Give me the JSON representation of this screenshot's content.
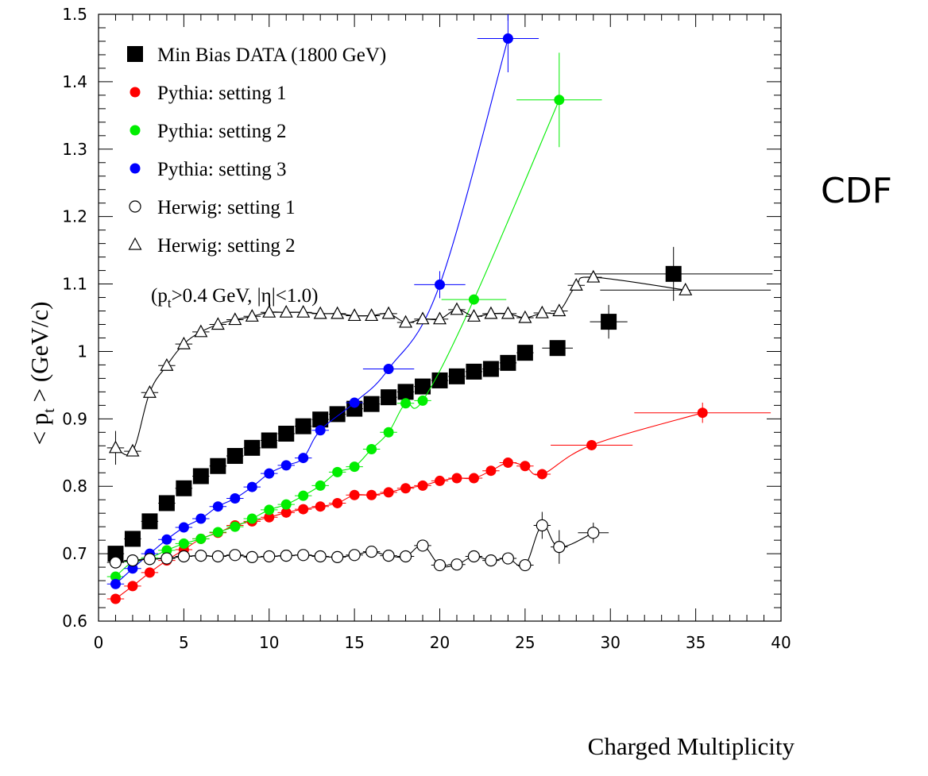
{
  "chart_data": {
    "type": "scatter",
    "xlabel": "Charged Multiplicity",
    "ylabel": "< p_t > (GeV/c)",
    "xlim": [
      0,
      40
    ],
    "ylim": [
      0.6,
      1.5
    ],
    "xticks": [
      "0",
      "5",
      "10",
      "15",
      "20",
      "25",
      "30",
      "35",
      "40"
    ],
    "yticks": [
      "0.6",
      "0.7",
      "0.8",
      "0.9",
      "1",
      "1.1",
      "1.2",
      "1.3",
      "1.4",
      "1.5"
    ],
    "annotation": "(p_t>0.4 GeV, |η|<1.0)",
    "watermark": "CDF",
    "legend_position": "top-left",
    "series": [
      {
        "name": "Min Bias DATA (1800 GeV)",
        "marker": "square-filled",
        "color": "#000000",
        "curve": false,
        "points": [
          {
            "x": 1,
            "y": 0.7
          },
          {
            "x": 2,
            "y": 0.722
          },
          {
            "x": 3,
            "y": 0.748
          },
          {
            "x": 4,
            "y": 0.775
          },
          {
            "x": 5,
            "y": 0.797
          },
          {
            "x": 6,
            "y": 0.815
          },
          {
            "x": 7,
            "y": 0.83
          },
          {
            "x": 8,
            "y": 0.845
          },
          {
            "x": 9,
            "y": 0.857
          },
          {
            "x": 10,
            "y": 0.868
          },
          {
            "x": 11,
            "y": 0.878
          },
          {
            "x": 12,
            "y": 0.889
          },
          {
            "x": 13,
            "y": 0.899
          },
          {
            "x": 14,
            "y": 0.907
          },
          {
            "x": 15,
            "y": 0.915
          },
          {
            "x": 16,
            "y": 0.922
          },
          {
            "x": 17,
            "y": 0.932
          },
          {
            "x": 18,
            "y": 0.94
          },
          {
            "x": 19,
            "y": 0.948
          },
          {
            "x": 20,
            "y": 0.957
          },
          {
            "x": 21,
            "y": 0.963
          },
          {
            "x": 22,
            "y": 0.97
          },
          {
            "x": 23,
            "y": 0.974
          },
          {
            "x": 24,
            "y": 0.983
          },
          {
            "x": 25,
            "y": 0.998
          },
          {
            "x": 26.9,
            "y": 1.005,
            "xe": 0.9
          },
          {
            "x": 29.9,
            "y": 1.044,
            "xe": 1.1,
            "ye": 0.025
          },
          {
            "x": 33.7,
            "y": 1.115,
            "xe": 5.8,
            "ye": 0.04
          }
        ]
      },
      {
        "name": "Pythia: setting 1",
        "marker": "circle-filled",
        "color": "#ff0000",
        "curve": true,
        "points": [
          {
            "x": 1,
            "y": 0.633
          },
          {
            "x": 2,
            "y": 0.652
          },
          {
            "x": 3,
            "y": 0.672
          },
          {
            "x": 4,
            "y": 0.69
          },
          {
            "x": 5,
            "y": 0.706
          },
          {
            "x": 6,
            "y": 0.722
          },
          {
            "x": 7,
            "y": 0.731
          },
          {
            "x": 8,
            "y": 0.742
          },
          {
            "x": 9,
            "y": 0.748
          },
          {
            "x": 10,
            "y": 0.754
          },
          {
            "x": 11,
            "y": 0.761
          },
          {
            "x": 12,
            "y": 0.766
          },
          {
            "x": 13,
            "y": 0.77
          },
          {
            "x": 14,
            "y": 0.775
          },
          {
            "x": 15,
            "y": 0.787
          },
          {
            "x": 16,
            "y": 0.787
          },
          {
            "x": 17,
            "y": 0.791
          },
          {
            "x": 18,
            "y": 0.797
          },
          {
            "x": 19,
            "y": 0.801
          },
          {
            "x": 20,
            "y": 0.808
          },
          {
            "x": 21,
            "y": 0.812
          },
          {
            "x": 22,
            "y": 0.812
          },
          {
            "x": 23,
            "y": 0.823
          },
          {
            "x": 24,
            "y": 0.835
          },
          {
            "x": 25,
            "y": 0.83
          },
          {
            "x": 26,
            "y": 0.818
          },
          {
            "x": 28.9,
            "y": 0.861,
            "xe": 2.4
          },
          {
            "x": 35.4,
            "y": 0.909,
            "xe": 4.0,
            "ye": 0.015
          }
        ]
      },
      {
        "name": "Pythia: setting 2",
        "marker": "circle-filled",
        "color": "#00ee00",
        "curve": true,
        "points": [
          {
            "x": 1,
            "y": 0.666
          },
          {
            "x": 2,
            "y": 0.688
          },
          {
            "x": 3,
            "y": 0.694
          },
          {
            "x": 4,
            "y": 0.705
          },
          {
            "x": 5,
            "y": 0.715
          },
          {
            "x": 6,
            "y": 0.722
          },
          {
            "x": 7,
            "y": 0.732
          },
          {
            "x": 8,
            "y": 0.74
          },
          {
            "x": 9,
            "y": 0.752
          },
          {
            "x": 10,
            "y": 0.765
          },
          {
            "x": 11,
            "y": 0.773
          },
          {
            "x": 12,
            "y": 0.786
          },
          {
            "x": 13,
            "y": 0.801
          },
          {
            "x": 14,
            "y": 0.821
          },
          {
            "x": 15,
            "y": 0.829
          },
          {
            "x": 16,
            "y": 0.855
          },
          {
            "x": 17,
            "y": 0.88
          },
          {
            "x": 18,
            "y": 0.923
          },
          {
            "x": 19,
            "y": 0.927
          },
          {
            "x": 22,
            "y": 1.077,
            "xe": 1.9
          },
          {
            "x": 27,
            "y": 1.373,
            "xe": 2.5,
            "ye": 0.07
          }
        ]
      },
      {
        "name": "Pythia: setting 3",
        "marker": "circle-filled",
        "color": "#0000ff",
        "curve": true,
        "points": [
          {
            "x": 1,
            "y": 0.655
          },
          {
            "x": 2,
            "y": 0.678
          },
          {
            "x": 3,
            "y": 0.7
          },
          {
            "x": 4,
            "y": 0.721
          },
          {
            "x": 5,
            "y": 0.739
          },
          {
            "x": 6,
            "y": 0.752
          },
          {
            "x": 7,
            "y": 0.77
          },
          {
            "x": 8,
            "y": 0.782
          },
          {
            "x": 9,
            "y": 0.799
          },
          {
            "x": 10,
            "y": 0.819
          },
          {
            "x": 11,
            "y": 0.831
          },
          {
            "x": 12,
            "y": 0.842
          },
          {
            "x": 13,
            "y": 0.883
          },
          {
            "x": 15,
            "y": 0.924
          },
          {
            "x": 17,
            "y": 0.974,
            "xe": 1.5
          },
          {
            "x": 20,
            "y": 1.099,
            "xe": 1.5,
            "ye": 0.02
          },
          {
            "x": 24,
            "y": 1.464,
            "xe": 1.8,
            "ye": 0.05
          }
        ]
      },
      {
        "name": "Herwig: setting 1",
        "marker": "circle-open",
        "color": "#000000",
        "curve": true,
        "points": [
          {
            "x": 1,
            "y": 0.687
          },
          {
            "x": 2,
            "y": 0.69
          },
          {
            "x": 3,
            "y": 0.692
          },
          {
            "x": 4,
            "y": 0.693
          },
          {
            "x": 5,
            "y": 0.696
          },
          {
            "x": 6,
            "y": 0.697
          },
          {
            "x": 7,
            "y": 0.696
          },
          {
            "x": 8,
            "y": 0.698
          },
          {
            "x": 9,
            "y": 0.695
          },
          {
            "x": 10,
            "y": 0.696
          },
          {
            "x": 11,
            "y": 0.697
          },
          {
            "x": 12,
            "y": 0.698
          },
          {
            "x": 13,
            "y": 0.696
          },
          {
            "x": 14,
            "y": 0.695
          },
          {
            "x": 15,
            "y": 0.698
          },
          {
            "x": 16,
            "y": 0.703
          },
          {
            "x": 17,
            "y": 0.697
          },
          {
            "x": 18,
            "y": 0.696
          },
          {
            "x": 19,
            "y": 0.712
          },
          {
            "x": 20,
            "y": 0.683
          },
          {
            "x": 21,
            "y": 0.684
          },
          {
            "x": 22,
            "y": 0.696
          },
          {
            "x": 23,
            "y": 0.69
          },
          {
            "x": 24,
            "y": 0.693
          },
          {
            "x": 25,
            "y": 0.683
          },
          {
            "x": 26,
            "y": 0.742,
            "ye": 0.02
          },
          {
            "x": 27,
            "y": 0.71,
            "ye": 0.025
          },
          {
            "x": 29,
            "y": 0.731,
            "xe": 0.9,
            "ye": 0.015
          }
        ]
      },
      {
        "name": "Herwig: setting 2",
        "marker": "triangle-open",
        "color": "#000000",
        "curve": true,
        "points": [
          {
            "x": 1,
            "y": 0.857,
            "ye": 0.025
          },
          {
            "x": 2,
            "y": 0.852
          },
          {
            "x": 3,
            "y": 0.939
          },
          {
            "x": 4,
            "y": 0.979
          },
          {
            "x": 5,
            "y": 1.011
          },
          {
            "x": 6,
            "y": 1.029
          },
          {
            "x": 7,
            "y": 1.04
          },
          {
            "x": 8,
            "y": 1.047
          },
          {
            "x": 9,
            "y": 1.052
          },
          {
            "x": 10,
            "y": 1.058
          },
          {
            "x": 11,
            "y": 1.058
          },
          {
            "x": 12,
            "y": 1.058
          },
          {
            "x": 13,
            "y": 1.056
          },
          {
            "x": 14,
            "y": 1.056
          },
          {
            "x": 15,
            "y": 1.053
          },
          {
            "x": 16,
            "y": 1.053
          },
          {
            "x": 17,
            "y": 1.056
          },
          {
            "x": 18,
            "y": 1.043
          },
          {
            "x": 19,
            "y": 1.048
          },
          {
            "x": 20,
            "y": 1.048
          },
          {
            "x": 21,
            "y": 1.062
          },
          {
            "x": 22,
            "y": 1.052
          },
          {
            "x": 23,
            "y": 1.056
          },
          {
            "x": 24,
            "y": 1.056
          },
          {
            "x": 25,
            "y": 1.05
          },
          {
            "x": 26,
            "y": 1.057
          },
          {
            "x": 27,
            "y": 1.06
          },
          {
            "x": 28,
            "y": 1.098
          },
          {
            "x": 29,
            "y": 1.11
          },
          {
            "x": 34.4,
            "y": 1.091,
            "xe": 5.0
          }
        ]
      }
    ]
  }
}
